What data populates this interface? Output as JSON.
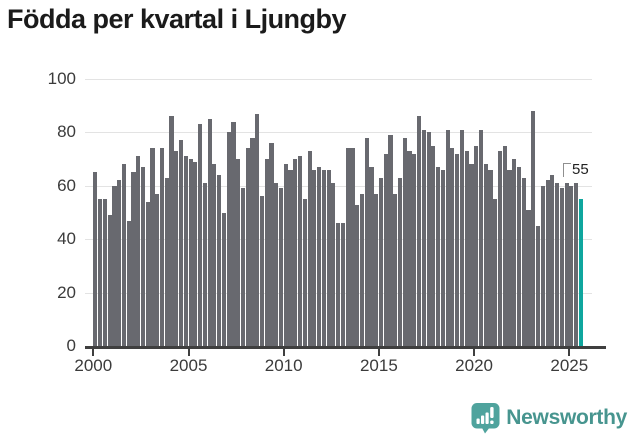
{
  "header": {
    "title": "Födda per kvartal i Ljungby"
  },
  "chart_data": {
    "type": "bar",
    "title": "Födda per kvartal i Ljungby",
    "x_frequency": "quarterly",
    "x_start": "2000 Q1",
    "x_end": "2025 Q3",
    "x_tick_labels": [
      "2000",
      "2005",
      "2010",
      "2015",
      "2020",
      "2025"
    ],
    "y_tick_labels": [
      "0",
      "20",
      "40",
      "60",
      "80",
      "100"
    ],
    "y_tick_values": [
      0,
      20,
      40,
      60,
      80,
      100
    ],
    "ylim": [
      0,
      100
    ],
    "grid": true,
    "legend": "none",
    "bar_color": "#68696F",
    "highlight_color": "#0FA69E",
    "series": [
      {
        "name": "Födda per kvartal",
        "values": [
          65,
          55,
          55,
          49,
          60,
          62,
          68,
          47,
          65,
          71,
          67,
          54,
          74,
          57,
          74,
          63,
          86,
          73,
          77,
          71,
          70,
          69,
          83,
          61,
          85,
          68,
          64,
          50,
          80,
          84,
          70,
          59,
          74,
          78,
          87,
          56,
          70,
          76,
          61,
          59,
          68,
          66,
          70,
          71,
          55,
          73,
          66,
          67,
          66,
          66,
          61,
          46,
          46,
          74,
          74,
          53,
          57,
          78,
          67,
          57,
          63,
          72,
          79,
          57,
          63,
          78,
          73,
          72,
          86,
          81,
          80,
          75,
          67,
          66,
          81,
          74,
          72,
          81,
          73,
          68,
          75,
          81,
          68,
          66,
          55,
          73,
          75,
          66,
          70,
          67,
          63,
          51,
          88,
          45,
          60,
          62,
          64,
          61,
          59,
          61,
          60,
          61,
          55
        ]
      }
    ],
    "highlight": {
      "index": 102,
      "quarter": "2025 Q3",
      "value": 55,
      "annotation_label": "55"
    }
  },
  "annotation": {
    "value_label": "55"
  },
  "footer": {
    "brand": "Newsworthy"
  },
  "colors": {
    "title_text": "#1B1B1B",
    "axis_text": "#3B3B3B",
    "axis_line": "#3F3F3F",
    "gridline": "#E3E3E3",
    "bar_gray": "#68696F",
    "accent_teal": "#0FA69E",
    "logo_teal": "#47958F"
  }
}
